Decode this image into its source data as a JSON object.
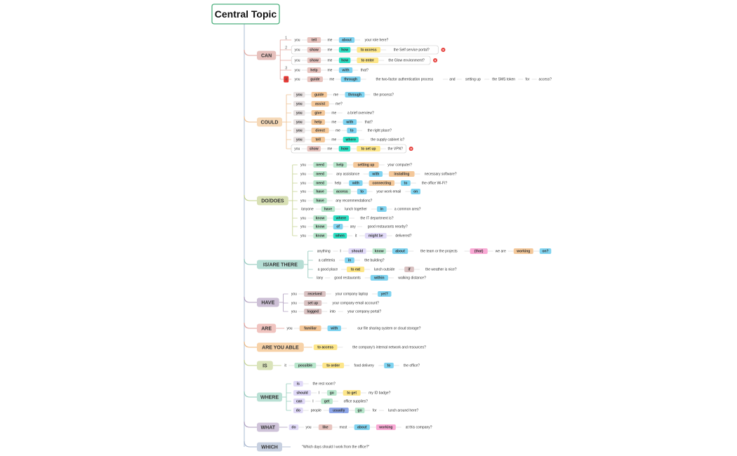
{
  "root": {
    "label": "Central Topic"
  },
  "palette": {
    "trunk": "#b7c9da",
    "root_border": "#4caf7d",
    "badge_red": "#e53935",
    "pos_colors": {
      "s": "#e8e2e2",
      "v": "#e7c3be",
      "p": "#e0e0e0",
      "a": "#7fd3f0",
      "t": "#fde68a",
      "c": "#2ee0c5",
      "n": "#d9c1c1",
      "g": "#b8e6cc",
      "l": "#f4c89a",
      "k": "#f9a8d4",
      "q": "#e0d9f7",
      "i": "#8ea6e8"
    },
    "branches": {
      "CAN": {
        "fill": "#e6c0bc",
        "line": "#e0a49c"
      },
      "COULD": {
        "fill": "#f6d9b8",
        "line": "#edbd8c"
      },
      "DO/DOES": {
        "fill": "#d8e0b4",
        "line": "#c1cf8a"
      },
      "IS/ARE THERE": {
        "fill": "#b5ddd4",
        "line": "#8cc5b8"
      },
      "HAVE": {
        "fill": "#cdc0d6",
        "line": "#ae9bbd"
      },
      "ARE": {
        "fill": "#f0c4c0",
        "line": "#e29c96"
      },
      "ARE YOU ABLE": {
        "fill": "#f7d2a8",
        "line": "#eeb57a"
      },
      "IS": {
        "fill": "#d9e3b9",
        "line": "#c2d08e"
      },
      "WHERE": {
        "fill": "#b9e0d4",
        "line": "#8fcab8"
      },
      "WHAT": {
        "fill": "#cfc3d9",
        "line": "#ae9dbf"
      },
      "WHICH": {
        "fill": "#c7d0e0",
        "line": "#a4b3cc"
      }
    }
  },
  "branches": [
    {
      "label": "CAN",
      "rows": [
        {
          "num": "1",
          "words": [
            [
              "you",
              "p"
            ],
            [
              "tell",
              "v"
            ],
            [
              "me",
              "p"
            ],
            [
              "about",
              "a"
            ],
            [
              "your role here?",
              "p"
            ]
          ]
        },
        {
          "num": "2",
          "group": true,
          "words": [
            [
              "you",
              "p"
            ],
            [
              "show",
              "v"
            ],
            [
              "me",
              "p"
            ],
            [
              "how",
              "c"
            ],
            [
              "to access",
              "t"
            ],
            [
              "the Self service portal?",
              "p"
            ]
          ],
          "badge": "×"
        },
        {
          "group": true,
          "words": [
            [
              "you",
              "p"
            ],
            [
              "show",
              "v"
            ],
            [
              "me",
              "p"
            ],
            [
              "how",
              "c"
            ],
            [
              "to enter",
              "t"
            ],
            [
              "the Glow environment?",
              "p"
            ]
          ],
          "badge": "×"
        },
        {
          "num": "3",
          "words": [
            [
              "you",
              "p"
            ],
            [
              "help",
              "v"
            ],
            [
              "me",
              "p"
            ],
            [
              "with",
              "a"
            ],
            [
              "that?",
              "p"
            ]
          ]
        },
        {
          "num": "4",
          "numBadge": true,
          "words": [
            [
              "you",
              "p"
            ],
            [
              "guide",
              "v"
            ],
            [
              "me",
              "p"
            ],
            [
              "through",
              "a"
            ],
            [
              "the two-factor authentication process",
              "p"
            ],
            [
              "and",
              "p"
            ],
            [
              "setting up",
              "p"
            ],
            [
              "the SMS token",
              "p"
            ],
            [
              "for",
              "p"
            ],
            [
              "access?",
              "p"
            ]
          ]
        }
      ]
    },
    {
      "label": "COULD",
      "rows": [
        {
          "words": [
            [
              "you",
              "s"
            ],
            [
              "guide",
              "l"
            ],
            [
              "me",
              "p"
            ],
            [
              "through",
              "a"
            ],
            [
              "the process?",
              "p"
            ]
          ]
        },
        {
          "words": [
            [
              "you",
              "s"
            ],
            [
              "assist",
              "l"
            ],
            [
              "me?",
              "p"
            ]
          ]
        },
        {
          "words": [
            [
              "you",
              "s"
            ],
            [
              "give",
              "l"
            ],
            [
              "me",
              "p"
            ],
            [
              "a brief overview?",
              "p"
            ]
          ]
        },
        {
          "words": [
            [
              "you",
              "s"
            ],
            [
              "help",
              "l"
            ],
            [
              "me",
              "p"
            ],
            [
              "with",
              "a"
            ],
            [
              "that?",
              "p"
            ]
          ]
        },
        {
          "words": [
            [
              "you",
              "s"
            ],
            [
              "direct",
              "l"
            ],
            [
              "me",
              "p"
            ],
            [
              "to",
              "a"
            ],
            [
              "the right place?",
              "p"
            ]
          ]
        },
        {
          "words": [
            [
              "you",
              "s"
            ],
            [
              "tell",
              "l"
            ],
            [
              "me",
              "p"
            ],
            [
              "where",
              "c"
            ],
            [
              "the supply cabinet is?",
              "p"
            ]
          ]
        },
        {
          "group": true,
          "words": [
            [
              "you",
              "p"
            ],
            [
              "show",
              "v"
            ],
            [
              "me",
              "p"
            ],
            [
              "how",
              "c"
            ],
            [
              "to set up",
              "t"
            ],
            [
              "the VPN?",
              "p"
            ]
          ],
          "badge": "×"
        }
      ]
    },
    {
      "label": "DO/DOES",
      "rows": [
        {
          "words": [
            [
              "you",
              "p"
            ],
            [
              "need",
              "g"
            ],
            [
              "help",
              "g"
            ],
            [
              "setting up",
              "l"
            ],
            [
              "your computer?",
              "p"
            ]
          ]
        },
        {
          "words": [
            [
              "you",
              "p"
            ],
            [
              "need",
              "g"
            ],
            [
              "any assistance",
              "p"
            ],
            [
              "with",
              "a"
            ],
            [
              "installing",
              "l"
            ],
            [
              "necessary software?",
              "p"
            ]
          ]
        },
        {
          "words": [
            [
              "you",
              "p"
            ],
            [
              "need",
              "g"
            ],
            [
              "help",
              "p"
            ],
            [
              "with",
              "a"
            ],
            [
              "connecting",
              "l"
            ],
            [
              "to",
              "a"
            ],
            [
              "the office Wi-Fi?",
              "p"
            ]
          ]
        },
        {
          "words": [
            [
              "you",
              "p"
            ],
            [
              "have",
              "g"
            ],
            [
              "access",
              "g"
            ],
            [
              "to",
              "a"
            ],
            [
              "your work email",
              "p"
            ],
            [
              "on",
              "a"
            ]
          ]
        },
        {
          "words": [
            [
              "you",
              "p"
            ],
            [
              "have",
              "g"
            ],
            [
              "any recommendations?",
              "p"
            ]
          ]
        },
        {
          "words": [
            [
              "/anyone",
              "p"
            ],
            [
              "have",
              "g"
            ],
            [
              "lunch together",
              "p"
            ],
            [
              "in",
              "a"
            ],
            [
              "a common area?",
              "p"
            ]
          ]
        },
        {
          "words": [
            [
              "you",
              "p"
            ],
            [
              "know",
              "g"
            ],
            [
              "where",
              "c"
            ],
            [
              "the IT department is?",
              "p"
            ]
          ]
        },
        {
          "words": [
            [
              "you",
              "p"
            ],
            [
              "know",
              "g"
            ],
            [
              "of",
              "a"
            ],
            [
              "any",
              "p"
            ],
            [
              "good restaurants nearby?",
              "p"
            ]
          ]
        },
        {
          "words": [
            [
              "you",
              "p"
            ],
            [
              "know",
              "g"
            ],
            [
              "when",
              "c"
            ],
            [
              "it",
              "p"
            ],
            [
              "might be",
              "q"
            ],
            [
              "delivered?",
              "p"
            ]
          ]
        }
      ]
    },
    {
      "label": "IS/ARE THERE",
      "rows": [
        {
          "words": [
            [
              "anything",
              "p"
            ],
            [
              "I",
              "p"
            ],
            [
              "should",
              "q"
            ],
            [
              "know",
              "g"
            ],
            [
              "about",
              "a"
            ],
            [
              "the team or the projects",
              "p"
            ],
            [
              "(that)",
              "k"
            ],
            [
              "we are",
              "p"
            ],
            [
              "working",
              "l"
            ],
            [
              "on?",
              "a"
            ]
          ]
        },
        {
          "words": [
            [
              "a cafeteria",
              "p"
            ],
            [
              "in",
              "a"
            ],
            [
              "the building?",
              "p"
            ]
          ]
        },
        {
          "words": [
            [
              "a good place",
              "p"
            ],
            [
              "to eat",
              "t"
            ],
            [
              "lunch outside",
              "p"
            ],
            [
              "if",
              "n"
            ],
            [
              "the weather is nice?",
              "p"
            ]
          ]
        },
        {
          "words": [
            [
              "/any",
              "p"
            ],
            [
              "good restaurants",
              "p"
            ],
            [
              "within",
              "a"
            ],
            [
              "walking distance?",
              "p"
            ]
          ]
        }
      ]
    },
    {
      "label": "HAVE",
      "rows": [
        {
          "words": [
            [
              "you",
              "p"
            ],
            [
              "received",
              "n"
            ],
            [
              "your company laptop",
              "p"
            ],
            [
              "yet?",
              "a"
            ]
          ]
        },
        {
          "words": [
            [
              "you",
              "p"
            ],
            [
              "set up",
              "n"
            ],
            [
              "your company email account?",
              "p"
            ]
          ]
        },
        {
          "words": [
            [
              "you",
              "p"
            ],
            [
              "logged",
              "n"
            ],
            [
              "into",
              "p"
            ],
            [
              "your company portal?",
              "p"
            ]
          ]
        }
      ]
    },
    {
      "label": "ARE",
      "rows": [
        {
          "words": [
            [
              "you",
              "p"
            ],
            [
              "familiar",
              "l"
            ],
            [
              "with",
              "a"
            ],
            [
              "our file sharing system or cloud storage?",
              "p"
            ]
          ]
        }
      ]
    },
    {
      "label": "ARE YOU ABLE",
      "rows": [
        {
          "words": [
            [
              "to access",
              "t"
            ],
            [
              "the company's internal network and resources?",
              "p"
            ]
          ]
        }
      ]
    },
    {
      "label": "IS",
      "rows": [
        {
          "words": [
            [
              "it",
              "p"
            ],
            [
              "possible",
              "g"
            ],
            [
              "to order",
              "t"
            ],
            [
              "food delivery",
              "p"
            ],
            [
              "to",
              "a"
            ],
            [
              "the office?",
              "p"
            ]
          ]
        }
      ]
    },
    {
      "label": "WHERE",
      "rows": [
        {
          "words": [
            [
              "is",
              "q"
            ],
            [
              "the rest room?",
              "p"
            ]
          ]
        },
        {
          "words": [
            [
              "should",
              "q"
            ],
            [
              "I",
              "p"
            ],
            [
              "go",
              "g"
            ],
            [
              "to get",
              "t"
            ],
            [
              "my ID badge?",
              "p"
            ]
          ]
        },
        {
          "words": [
            [
              "can",
              "q"
            ],
            [
              "I",
              "p"
            ],
            [
              "get",
              "g"
            ],
            [
              "office supplies?",
              "p"
            ]
          ]
        },
        {
          "words": [
            [
              "do",
              "q"
            ],
            [
              "people",
              "p"
            ],
            [
              "usually",
              "i"
            ],
            [
              "go",
              "g"
            ],
            [
              "for",
              "p"
            ],
            [
              "lunch around here?",
              "p"
            ]
          ]
        }
      ]
    },
    {
      "label": "WHAT",
      "rows": [
        {
          "words": [
            [
              "do",
              "q"
            ],
            [
              "you",
              "p"
            ],
            [
              "like",
              "v"
            ],
            [
              "most",
              "p"
            ],
            [
              "about",
              "a"
            ],
            [
              "working",
              "k"
            ],
            [
              "at this company?",
              "p"
            ]
          ]
        }
      ]
    },
    {
      "label": "WHICH",
      "rows": [
        {
          "words": [
            [
              "\"Which days should I work from the office?\"",
              "p"
            ]
          ]
        }
      ]
    }
  ]
}
